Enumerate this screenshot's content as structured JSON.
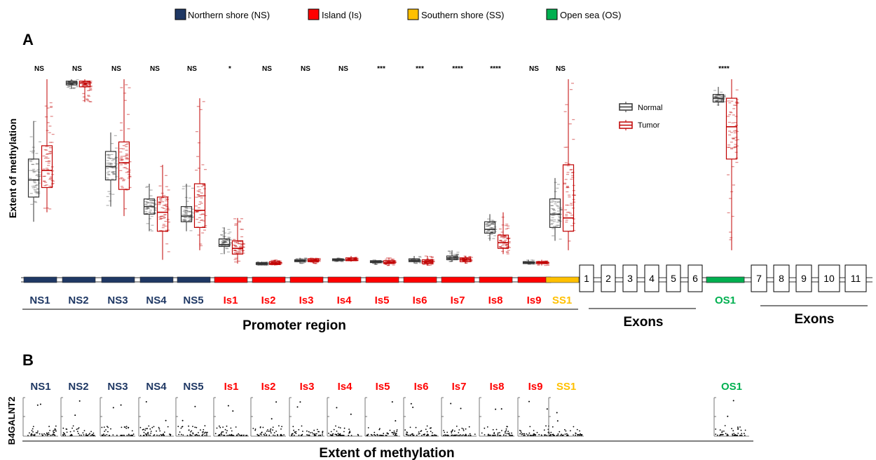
{
  "legend": [
    {
      "label": "Northern shore (NS)",
      "color": "#1f3864"
    },
    {
      "label": "Island (Is)",
      "color": "#ff0000"
    },
    {
      "label": "Southern shore (SS)",
      "color": "#ffc000"
    },
    {
      "label": "Open sea (OS)",
      "color": "#00b050"
    }
  ],
  "panel_a_label": "A",
  "panel_b_label": "B",
  "colors": {
    "ns": "#1f3864",
    "is": "#ff0000",
    "ss": "#ffc000",
    "os": "#00b050",
    "normal": "#333333",
    "tumor": "#c00000"
  },
  "chart_data": [
    {
      "type": "box",
      "panel": "A",
      "ylabel": "Extent of methylation",
      "box_legend": [
        "Normal",
        "Tumor"
      ],
      "regions": [
        {
          "name": "NS1",
          "group": "ns",
          "sig": "NS",
          "normal": {
            "min": 0.25,
            "q1": 0.38,
            "median": 0.47,
            "q3": 0.58,
            "max": 0.78
          },
          "tumor": {
            "min": 0.3,
            "q1": 0.43,
            "median": 0.52,
            "q3": 0.65,
            "max": 1.0
          }
        },
        {
          "name": "NS2",
          "group": "ns",
          "sig": "NS",
          "normal": {
            "min": 0.95,
            "q1": 0.97,
            "median": 0.98,
            "q3": 0.99,
            "max": 1.0
          },
          "tumor": {
            "min": 0.88,
            "q1": 0.96,
            "median": 0.98,
            "q3": 0.99,
            "max": 1.0
          }
        },
        {
          "name": "NS3",
          "group": "ns",
          "sig": "NS",
          "normal": {
            "min": 0.33,
            "q1": 0.47,
            "median": 0.54,
            "q3": 0.62,
            "max": 0.72
          },
          "tumor": {
            "min": 0.28,
            "q1": 0.42,
            "median": 0.56,
            "q3": 0.67,
            "max": 1.0
          }
        },
        {
          "name": "NS4",
          "group": "ns",
          "sig": "NS",
          "normal": {
            "min": 0.2,
            "q1": 0.29,
            "median": 0.33,
            "q3": 0.37,
            "max": 0.45
          },
          "tumor": {
            "min": 0.05,
            "q1": 0.2,
            "median": 0.3,
            "q3": 0.38,
            "max": 0.55
          }
        },
        {
          "name": "NS5",
          "group": "ns",
          "sig": "NS",
          "normal": {
            "min": 0.2,
            "q1": 0.25,
            "median": 0.28,
            "q3": 0.33,
            "max": 0.45
          },
          "tumor": {
            "min": 0.1,
            "q1": 0.22,
            "median": 0.31,
            "q3": 0.45,
            "max": 0.9
          }
        },
        {
          "name": "Is1",
          "group": "is",
          "sig": "*",
          "normal": {
            "min": 0.08,
            "q1": 0.12,
            "median": 0.13,
            "q3": 0.16,
            "max": 0.22
          },
          "tumor": {
            "min": 0.03,
            "q1": 0.08,
            "median": 0.11,
            "q3": 0.15,
            "max": 0.27
          }
        },
        {
          "name": "Is2",
          "group": "is",
          "sig": "NS",
          "normal": {
            "min": 0.02,
            "q1": 0.025,
            "median": 0.03,
            "q3": 0.035,
            "max": 0.04
          },
          "tumor": {
            "min": 0.02,
            "q1": 0.025,
            "median": 0.03,
            "q3": 0.04,
            "max": 0.05
          }
        },
        {
          "name": "Is3",
          "group": "is",
          "sig": "NS",
          "normal": {
            "min": 0.03,
            "q1": 0.04,
            "median": 0.045,
            "q3": 0.05,
            "max": 0.06
          },
          "tumor": {
            "min": 0.03,
            "q1": 0.04,
            "median": 0.045,
            "q3": 0.055,
            "max": 0.06
          }
        },
        {
          "name": "Is4",
          "group": "is",
          "sig": "NS",
          "normal": {
            "min": 0.04,
            "q1": 0.045,
            "median": 0.05,
            "q3": 0.055,
            "max": 0.06
          },
          "tumor": {
            "min": 0.04,
            "q1": 0.045,
            "median": 0.05,
            "q3": 0.06,
            "max": 0.07
          }
        },
        {
          "name": "Is5",
          "group": "is",
          "sig": "***",
          "normal": {
            "min": 0.025,
            "q1": 0.035,
            "median": 0.04,
            "q3": 0.045,
            "max": 0.05
          },
          "tumor": {
            "min": 0.02,
            "q1": 0.03,
            "median": 0.035,
            "q3": 0.045,
            "max": 0.06
          }
        },
        {
          "name": "Is6",
          "group": "is",
          "sig": "***",
          "normal": {
            "min": 0.03,
            "q1": 0.04,
            "median": 0.045,
            "q3": 0.055,
            "max": 0.07
          },
          "tumor": {
            "min": 0.02,
            "q1": 0.03,
            "median": 0.04,
            "q3": 0.05,
            "max": 0.07
          }
        },
        {
          "name": "Is7",
          "group": "is",
          "sig": "****",
          "normal": {
            "min": 0.04,
            "q1": 0.05,
            "median": 0.06,
            "q3": 0.07,
            "max": 0.1
          },
          "tumor": {
            "min": 0.03,
            "q1": 0.04,
            "median": 0.05,
            "q3": 0.06,
            "max": 0.07
          }
        },
        {
          "name": "Is8",
          "group": "is",
          "sig": "****",
          "normal": {
            "min": 0.15,
            "q1": 0.19,
            "median": 0.21,
            "q3": 0.25,
            "max": 0.29
          },
          "tumor": {
            "min": 0.08,
            "q1": 0.11,
            "median": 0.14,
            "q3": 0.18,
            "max": 0.3
          }
        },
        {
          "name": "Is9",
          "group": "is",
          "sig": "NS",
          "normal": {
            "min": 0.025,
            "q1": 0.03,
            "median": 0.035,
            "q3": 0.04,
            "max": 0.05
          },
          "tumor": {
            "min": 0.02,
            "q1": 0.03,
            "median": 0.035,
            "q3": 0.04,
            "max": 0.05
          }
        },
        {
          "name": "SS1",
          "group": "ss",
          "sig": "NS",
          "normal": {
            "min": 0.15,
            "q1": 0.22,
            "median": 0.29,
            "q3": 0.37,
            "max": 0.48
          },
          "tumor": {
            "min": 0.1,
            "q1": 0.2,
            "median": 0.27,
            "q3": 0.55,
            "max": 1.0
          }
        },
        {
          "name": "OS1",
          "group": "os",
          "sig": "****",
          "normal": {
            "min": 0.86,
            "q1": 0.88,
            "median": 0.9,
            "q3": 0.92,
            "max": 0.96
          },
          "tumor": {
            "min": 0.1,
            "q1": 0.58,
            "median": 0.75,
            "q3": 0.9,
            "max": 1.0
          }
        }
      ]
    },
    {
      "type": "scatter",
      "panel": "B",
      "ylabel": "B4GALNT2",
      "xlabel": "Extent of methylation",
      "regions": [
        "NS1",
        "NS2",
        "NS3",
        "NS4",
        "NS5",
        "Is1",
        "Is2",
        "Is3",
        "Is4",
        "Is5",
        "Is6",
        "Is7",
        "Is8",
        "Is9",
        "SS1",
        "OS1"
      ]
    }
  ],
  "gene_map": {
    "exons_a": [
      "1",
      "2",
      "3",
      "4",
      "5",
      "6"
    ],
    "exons_b": [
      "7",
      "8",
      "9",
      "10",
      "11"
    ],
    "promoter_label": "Promoter region",
    "exons_label": "Exons",
    "exons_label_2": "Exons"
  }
}
